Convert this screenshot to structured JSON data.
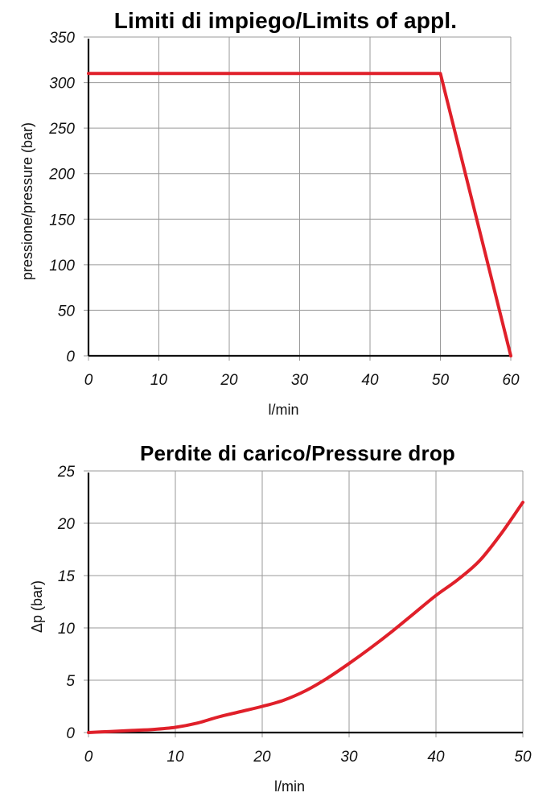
{
  "chart_data": [
    {
      "type": "line",
      "title": "Limiti di impiego/Limits of appl.",
      "xlabel": "l/min",
      "ylabel": "pressione/pressure (bar)",
      "xlim": [
        0,
        60
      ],
      "ylim": [
        0,
        350
      ],
      "x_ticks": [
        0,
        10,
        20,
        30,
        40,
        50,
        60
      ],
      "y_ticks": [
        0,
        50,
        100,
        150,
        200,
        250,
        300,
        350
      ],
      "grid": true,
      "legend": null,
      "series": [
        {
          "name": "Limits of application",
          "color": "#e0202a",
          "x": [
            0,
            50,
            60
          ],
          "y": [
            310,
            310,
            0
          ]
        }
      ]
    },
    {
      "type": "line",
      "title": "Perdite di carico/Pressure drop",
      "xlabel": "l/min",
      "ylabel": "Δp (bar)",
      "xlim": [
        0,
        50
      ],
      "ylim": [
        0,
        25
      ],
      "x_ticks": [
        0,
        10,
        20,
        30,
        40,
        50
      ],
      "y_ticks": [
        0,
        5,
        10,
        15,
        20,
        25
      ],
      "grid": true,
      "legend": null,
      "series": [
        {
          "name": "Pressure drop",
          "color": "#e0202a",
          "x": [
            0,
            2.5,
            5,
            7.5,
            10,
            12.5,
            15,
            17.5,
            20,
            22.5,
            25,
            27.5,
            30,
            32.5,
            35,
            37.5,
            40,
            42.5,
            45,
            47.5,
            50
          ],
          "y": [
            0,
            0.1,
            0.2,
            0.3,
            0.5,
            0.9,
            1.5,
            2.0,
            2.5,
            3.1,
            4.0,
            5.2,
            6.6,
            8.1,
            9.7,
            11.4,
            13.1,
            14.6,
            16.4,
            19.0,
            22.0
          ]
        }
      ]
    }
  ]
}
